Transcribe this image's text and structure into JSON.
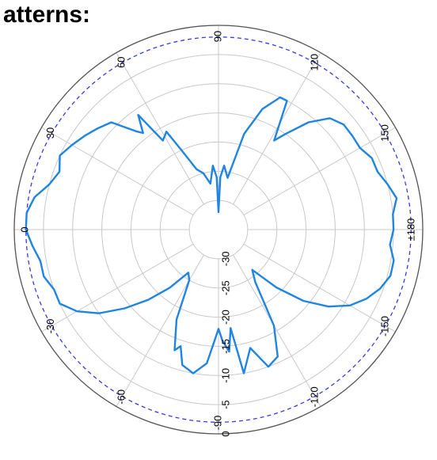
{
  "title": "atterns:",
  "chart_data": {
    "type": "polar",
    "radial_labels": [
      "-30",
      "-25",
      "-20",
      "-15",
      "-10",
      "-5",
      "0"
    ],
    "radial_range": [
      -35,
      0
    ],
    "reference_level": -2,
    "angle_labels": [
      {
        "angle": 90,
        "text": "90"
      },
      {
        "angle": 120,
        "text": "120"
      },
      {
        "angle": 150,
        "text": "150"
      },
      {
        "angle": 180,
        "text": "±180"
      },
      {
        "angle": -150,
        "text": "-150"
      },
      {
        "angle": -120,
        "text": "-120"
      },
      {
        "angle": -90,
        "text": "-90"
      },
      {
        "angle": -60,
        "text": "-60"
      },
      {
        "angle": -30,
        "text": "-30"
      },
      {
        "angle": 0,
        "text": "0"
      },
      {
        "angle": 30,
        "text": "30"
      },
      {
        "angle": 60,
        "text": "60"
      }
    ],
    "series": [
      {
        "color": "#1f85e0",
        "points": [
          [
            -180,
            -5
          ],
          [
            -175,
            -5.5
          ],
          [
            -170,
            -4.5
          ],
          [
            -165,
            -4.5
          ],
          [
            -160,
            -5.5
          ],
          [
            -155,
            -7
          ],
          [
            -150,
            -9
          ],
          [
            -145,
            -12
          ],
          [
            -140,
            -16
          ],
          [
            -135,
            -21
          ],
          [
            -130,
            -26
          ],
          [
            -125,
            -24
          ],
          [
            -120,
            -16
          ],
          [
            -115,
            -11
          ],
          [
            -110,
            -10
          ],
          [
            -105,
            -14
          ],
          [
            -100,
            -10
          ],
          [
            -97,
            -18
          ],
          [
            -95,
            -14
          ],
          [
            -92,
            -16
          ],
          [
            -90,
            -18
          ],
          [
            -88,
            -16
          ],
          [
            -85,
            -12
          ],
          [
            -80,
            -10
          ],
          [
            -75,
            -11
          ],
          [
            -72,
            -14
          ],
          [
            -70,
            -13
          ],
          [
            -65,
            -18
          ],
          [
            -60,
            -25
          ],
          [
            -55,
            -26
          ],
          [
            -50,
            -22
          ],
          [
            -45,
            -18
          ],
          [
            -40,
            -14
          ],
          [
            -35,
            -10
          ],
          [
            -30,
            -7
          ],
          [
            -25,
            -5
          ],
          [
            -20,
            -5
          ],
          [
            -15,
            -4
          ],
          [
            -10,
            -4
          ],
          [
            -5,
            -3
          ],
          [
            0,
            -2
          ],
          [
            5,
            -2
          ],
          [
            10,
            -3
          ],
          [
            15,
            -5
          ],
          [
            20,
            -6
          ],
          [
            25,
            -5
          ],
          [
            30,
            -6
          ],
          [
            35,
            -7
          ],
          [
            40,
            -8
          ],
          [
            45,
            -9
          ],
          [
            50,
            -13
          ],
          [
            52,
            -14
          ],
          [
            55,
            -11
          ],
          [
            58,
            -17
          ],
          [
            62,
            -16
          ],
          [
            65,
            -20
          ],
          [
            70,
            -24
          ],
          [
            75,
            -25
          ],
          [
            80,
            -27
          ],
          [
            85,
            -24
          ],
          [
            88,
            -26
          ],
          [
            90,
            -32
          ],
          [
            92,
            -26
          ],
          [
            95,
            -24
          ],
          [
            100,
            -26
          ],
          [
            105,
            -18
          ],
          [
            110,
            -13
          ],
          [
            115,
            -10
          ],
          [
            118,
            -10
          ],
          [
            122,
            -17
          ],
          [
            125,
            -15
          ],
          [
            130,
            -11
          ],
          [
            135,
            -8
          ],
          [
            140,
            -7
          ],
          [
            145,
            -7
          ],
          [
            150,
            -7
          ],
          [
            155,
            -6
          ],
          [
            160,
            -6
          ],
          [
            165,
            -5
          ],
          [
            170,
            -4
          ],
          [
            175,
            -5
          ],
          [
            180,
            -5
          ]
        ]
      }
    ]
  }
}
